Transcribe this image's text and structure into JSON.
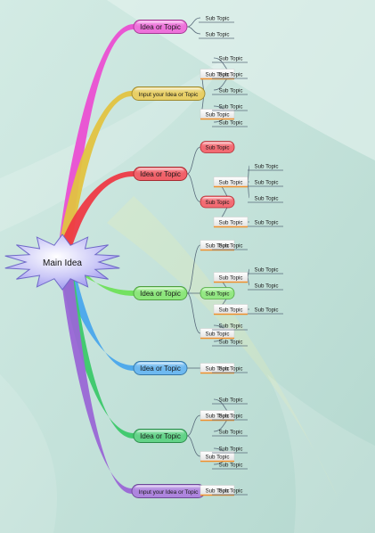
{
  "main_idea": {
    "label": "Main Idea",
    "color": "#b8b4f2"
  },
  "branches": [
    {
      "label": "Idea or Topic",
      "color": "#ea4fd2",
      "children": [
        {
          "label": "Sub Topic",
          "children": []
        },
        {
          "label": "Sub Topic",
          "children": []
        }
      ]
    },
    {
      "label": "Input your Idea or Topic",
      "color": "#e2c340",
      "children": [
        {
          "label": "Sub Topic",
          "children": [
            {
              "label": "Sub Topic",
              "children": []
            },
            {
              "label": "Sub Topic",
              "children": []
            },
            {
              "label": "Sub Topic",
              "children": []
            }
          ]
        },
        {
          "label": "Sub Topic",
          "children": [
            {
              "label": "Sub Topic",
              "children": []
            },
            {
              "label": "Sub Topic",
              "children": []
            }
          ]
        }
      ]
    },
    {
      "label": "Idea or Topic",
      "color": "#ee3a44",
      "children": [
        {
          "label": "Sub Topic",
          "children": []
        },
        {
          "label": "Sub Topic",
          "children": [
            {
              "label": "Sub Topic",
              "children": [
                {
                  "label": "Sub Topic",
                  "children": []
                },
                {
                  "label": "Sub Topic",
                  "children": []
                },
                {
                  "label": "Sub Topic",
                  "children": []
                }
              ]
            },
            {
              "label": "Sub Topic",
              "children": [
                {
                  "label": "Sub Topic",
                  "children": []
                }
              ]
            }
          ]
        }
      ]
    },
    {
      "label": "Idea or Topic",
      "color": "#6fe05a",
      "children": [
        {
          "label": "Sub Topic",
          "children": [
            {
              "label": "Sub Topic",
              "children": []
            }
          ]
        },
        {
          "label": "Sub Topic",
          "children": [
            {
              "label": "Sub Topic",
              "children": [
                {
                  "label": "Sub Topic",
                  "children": []
                },
                {
                  "label": "Sub Topic",
                  "children": []
                }
              ]
            },
            {
              "label": "Sub Topic",
              "children": [
                {
                  "label": "Sub Topic",
                  "children": []
                }
              ]
            }
          ]
        },
        {
          "label": "Sub Topic",
          "children": [
            {
              "label": "Sub Topic",
              "children": []
            },
            {
              "label": "Sub Topic",
              "children": []
            }
          ]
        }
      ]
    },
    {
      "label": "Idea or Topic",
      "color": "#4aa7ec",
      "children": [
        {
          "label": "Sub Topic",
          "children": [
            {
              "label": "Sub Topic",
              "children": []
            }
          ]
        }
      ]
    },
    {
      "label": "Idea or Topic",
      "color": "#3cc86a",
      "children": [
        {
          "label": "Sub Topic",
          "children": [
            {
              "label": "Sub Topic",
              "children": []
            },
            {
              "label": "Sub Topic",
              "children": []
            },
            {
              "label": "Sub Topic",
              "children": []
            }
          ]
        },
        {
          "label": "Sub Topic",
          "children": [
            {
              "label": "Sub Topic",
              "children": []
            },
            {
              "label": "Sub Topic",
              "children": []
            }
          ]
        }
      ]
    },
    {
      "label": "Input your Idea or Topic",
      "color": "#9a66d6",
      "children": [
        {
          "label": "Sub Topic",
          "children": [
            {
              "label": "Sub Topic",
              "children": []
            }
          ]
        }
      ]
    }
  ]
}
